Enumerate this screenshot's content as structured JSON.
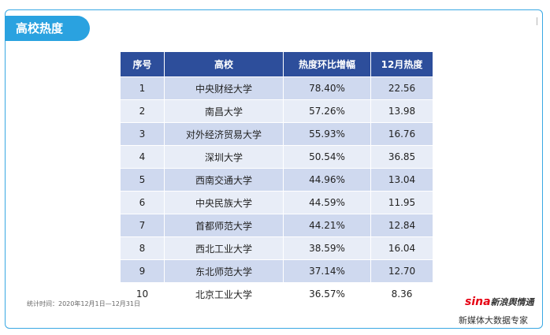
{
  "header": {
    "title": "高校热度"
  },
  "table": {
    "columns": [
      "序号",
      "高校",
      "热度环比增幅",
      "12月热度"
    ],
    "rows": [
      [
        "1",
        "中央财经大学",
        "78.40%",
        "22.56"
      ],
      [
        "2",
        "南昌大学",
        "57.26%",
        "13.98"
      ],
      [
        "3",
        "对外经济贸易大学",
        "55.93%",
        "16.76"
      ],
      [
        "4",
        "深圳大学",
        "50.54%",
        "36.85"
      ],
      [
        "5",
        "西南交通大学",
        "44.96%",
        "13.04"
      ],
      [
        "6",
        "中央民族大学",
        "44.59%",
        "11.95"
      ],
      [
        "7",
        "首都师范大学",
        "44.21%",
        "12.84"
      ],
      [
        "8",
        "西北工业大学",
        "38.59%",
        "16.04"
      ],
      [
        "9",
        "东北师范大学",
        "37.14%",
        "12.70"
      ],
      [
        "10",
        "北京工业大学",
        "36.57%",
        "8.36"
      ]
    ]
  },
  "footer": {
    "note": "统计时间：2020年12月1日—12月31日",
    "logo_brand": "sina",
    "logo_text": "新浪舆情通",
    "tagline": "新媒体大数据专家"
  },
  "colors": {
    "accent": "#2aa2e0",
    "table_header": "#2d4e9b",
    "row_dark": "#cfd9ef",
    "row_light": "#e8edf7",
    "logo_red": "#e60012"
  }
}
